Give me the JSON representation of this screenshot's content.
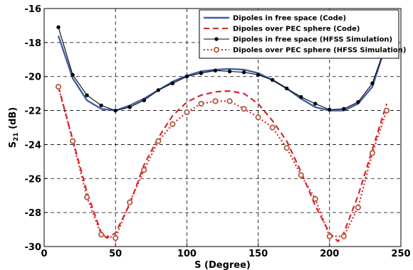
{
  "chart_data": {
    "type": "line",
    "title": "",
    "xlabel": "S (Degree)",
    "ylabel_main": "S",
    "ylabel_sub": "21",
    "ylabel_unit": " (dB)",
    "xlim": [
      0,
      250
    ],
    "ylim": [
      -30,
      -16
    ],
    "xticks": [
      0,
      50,
      100,
      150,
      200,
      250
    ],
    "yticks": [
      -30,
      -28,
      -26,
      -24,
      -22,
      -20,
      -18,
      -16
    ],
    "grid": true,
    "grid_style": "dashed",
    "legend_position": "top-right",
    "colors": {
      "blue": "#3d5fa8",
      "red": "#d9262b",
      "black": "#000000",
      "marker_red": "#b25a3e"
    },
    "series": [
      {
        "name": "Dipoles in free space (Code)",
        "style": "solid",
        "color": "#3d5fa8",
        "marker": "none",
        "x": [
          10,
          20,
          30,
          40,
          50,
          60,
          70,
          80,
          90,
          100,
          110,
          120,
          130,
          140,
          150,
          160,
          170,
          180,
          190,
          200,
          210,
          220,
          230,
          240
        ],
        "y": [
          -17.6,
          -20.1,
          -21.4,
          -21.9,
          -22.0,
          -21.7,
          -21.3,
          -20.8,
          -20.3,
          -19.95,
          -19.7,
          -19.6,
          -19.55,
          -19.6,
          -19.8,
          -20.2,
          -20.7,
          -21.3,
          -21.8,
          -22.0,
          -22.0,
          -21.6,
          -20.6,
          -18.0
        ]
      },
      {
        "name": "Dipoles over PEC sphere (Code)",
        "style": "dashed",
        "color": "#d9262b",
        "marker": "none",
        "x": [
          10,
          20,
          30,
          40,
          44,
          50,
          60,
          70,
          80,
          90,
          100,
          110,
          120,
          130,
          140,
          150,
          160,
          170,
          180,
          190,
          200,
          206,
          210,
          220,
          230,
          240
        ],
        "y": [
          -20.6,
          -23.7,
          -26.8,
          -29.2,
          -29.5,
          -29.2,
          -27.5,
          -25.2,
          -23.6,
          -22.3,
          -21.5,
          -21.1,
          -20.9,
          -20.85,
          -21.0,
          -21.6,
          -22.6,
          -23.8,
          -25.6,
          -27.6,
          -29.2,
          -29.7,
          -29.2,
          -27.0,
          -24.3,
          -21.6
        ]
      },
      {
        "name": "Dipoles in free space (HFSS Simulation)",
        "style": "solid",
        "color": "#000000",
        "marker": "dot",
        "x": [
          10,
          20,
          30,
          40,
          50,
          60,
          70,
          80,
          90,
          100,
          110,
          120,
          130,
          140,
          150,
          160,
          170,
          180,
          190,
          200,
          210,
          220,
          230,
          240
        ],
        "y": [
          -17.1,
          -19.9,
          -21.1,
          -21.7,
          -22.0,
          -21.8,
          -21.4,
          -20.8,
          -20.4,
          -20.0,
          -19.8,
          -19.65,
          -19.7,
          -19.75,
          -19.9,
          -20.2,
          -20.7,
          -21.2,
          -21.6,
          -21.95,
          -21.9,
          -21.5,
          -20.4,
          -18.0
        ]
      },
      {
        "name": "Dipoles over PEC sphere (HFSS Simulation)",
        "style": "dotted",
        "color": "#d9262b",
        "marker": "open-circle",
        "x": [
          10,
          20,
          30,
          40,
          50,
          60,
          70,
          80,
          90,
          100,
          110,
          120,
          130,
          140,
          150,
          160,
          170,
          180,
          190,
          200,
          210,
          220,
          230,
          240
        ],
        "y": [
          -20.6,
          -23.8,
          -27.1,
          -29.3,
          -29.5,
          -27.4,
          -25.5,
          -23.8,
          -22.8,
          -22.1,
          -21.6,
          -21.45,
          -21.45,
          -21.9,
          -22.4,
          -23.0,
          -24.2,
          -25.8,
          -27.2,
          -29.4,
          -29.4,
          -27.7,
          -24.5,
          -22.0
        ]
      }
    ]
  }
}
